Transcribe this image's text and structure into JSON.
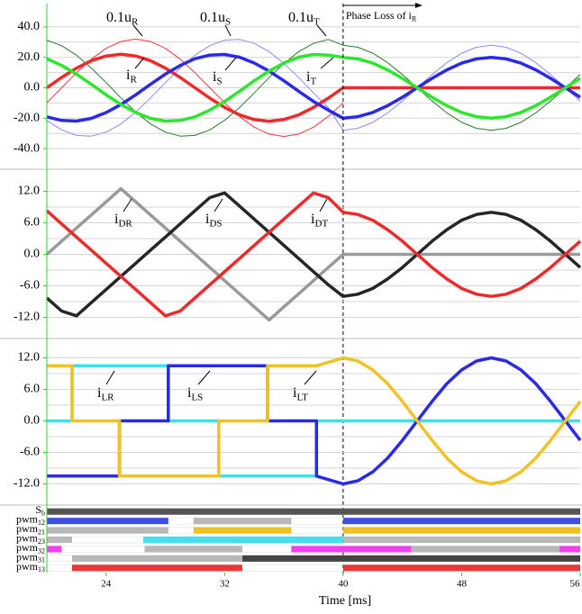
{
  "chart_data": [
    {
      "type": "line",
      "xlim": [
        20,
        56
      ],
      "ylim": [
        -50,
        50
      ],
      "grid": true,
      "yticks": [
        {
          "value": 40,
          "label": "40.0"
        },
        {
          "value": 20,
          "label": "20.0"
        },
        {
          "value": 0,
          "label": "0.0"
        },
        {
          "value": -20,
          "label": "-20.0"
        },
        {
          "value": -40,
          "label": "-40.0"
        }
      ],
      "ygrid": [
        -40,
        -30,
        -20,
        -10,
        0,
        10,
        20,
        30,
        40
      ],
      "annotation": {
        "text": "Phase Loss of i",
        "sub": "R",
        "x": 40
      },
      "x": [
        20,
        21,
        22,
        23,
        24,
        25,
        26,
        27,
        28,
        29,
        30,
        31,
        32,
        33,
        34,
        35,
        36,
        37,
        38,
        39,
        40,
        41,
        42,
        43,
        44,
        45,
        46,
        47,
        48,
        49,
        50,
        51,
        52,
        53,
        54,
        55,
        56
      ],
      "series": [
        {
          "name": "0.1u",
          "name_sub": "R",
          "color": "#e83a3a",
          "values": [
            -9.9,
            0,
            9.9,
            18.8,
            25.9,
            30.4,
            32,
            30.4,
            25.9,
            18.8,
            9.9,
            0,
            -9.9,
            -18.8,
            -25.9,
            -30.4,
            -32,
            -30.4,
            -25.9,
            -18.8,
            -9.9,
            null,
            null,
            null,
            null,
            null,
            null,
            null,
            null,
            null,
            null,
            null,
            null,
            null,
            null,
            null,
            null
          ]
        },
        {
          "name": "0.1u",
          "name_sub": "S",
          "color": "#8c8cf4",
          "values": [
            -21.4,
            -27.7,
            -31.3,
            -31.8,
            -29.2,
            -23.8,
            -16,
            -6.7,
            3.4,
            13,
            21.4,
            27.7,
            31.3,
            31.8,
            29.2,
            23.8,
            16,
            6.7,
            -3.4,
            -13,
            -28,
            -26.6,
            -22.7,
            -16.5,
            -8.7,
            0,
            8.7,
            16.5,
            22.7,
            26.6,
            28,
            26.6,
            22.7,
            16.5,
            8.7,
            0,
            -8.7
          ]
        },
        {
          "name": "0.1u",
          "name_sub": "T",
          "color": "#2a7a2a",
          "values": [
            31.3,
            27.7,
            21.4,
            13,
            3.4,
            -6.7,
            -16,
            -23.8,
            -29.2,
            -31.8,
            -31.3,
            -27.7,
            -21.4,
            -13,
            -3.4,
            6.7,
            16,
            23.8,
            29.2,
            31.8,
            28,
            26.6,
            22.7,
            16.5,
            8.7,
            0,
            -8.7,
            -16.5,
            -22.7,
            -26.6,
            -28,
            -26.6,
            -22.7,
            -16.5,
            -8.7,
            0,
            8.7
          ]
        },
        {
          "name": "i",
          "name_sub": "R",
          "color": "#ee2a2a",
          "values": [
            0,
            6.8,
            12.9,
            17.8,
            20.9,
            22,
            20.9,
            17.8,
            12.9,
            6.8,
            0,
            -6.8,
            -12.9,
            -17.8,
            -20.9,
            -22,
            -20.9,
            -17.8,
            -12.9,
            -6.8,
            0,
            0,
            0,
            0,
            0,
            0,
            0,
            0,
            0,
            0,
            0,
            0,
            0,
            0,
            0,
            0,
            0
          ]
        },
        {
          "name": "i",
          "name_sub": "S",
          "color": "#2a2ae6",
          "values": [
            -19.1,
            -21.5,
            -21.9,
            -20.1,
            -16.3,
            -11,
            -4.6,
            2.3,
            9,
            14.7,
            19.1,
            21.5,
            21.9,
            20.1,
            16.3,
            11,
            4.6,
            -2.3,
            -9,
            -14.7,
            -20,
            -19,
            -16.2,
            -11.8,
            -6.2,
            0,
            6.2,
            11.8,
            16.2,
            19,
            20,
            19,
            16.2,
            11.8,
            6.2,
            0,
            -6.2
          ]
        },
        {
          "name": "i",
          "name_sub": "T",
          "color": "#2ee62e",
          "values": [
            19.1,
            14.7,
            9,
            2.3,
            -4.6,
            -11,
            -16.3,
            -20.1,
            -21.9,
            -21.5,
            -19.1,
            -14.7,
            -9,
            -2.3,
            4.6,
            11,
            16.3,
            20.1,
            21.9,
            21.5,
            20,
            19,
            16.2,
            11.8,
            6.2,
            0,
            -6.2,
            -11.8,
            -16.2,
            -19,
            -20,
            -19,
            -16.2,
            -11.8,
            -6.2,
            0,
            6.2
          ]
        }
      ]
    },
    {
      "type": "line",
      "xlim": [
        20,
        56
      ],
      "ylim": [
        -15,
        15
      ],
      "grid": true,
      "yticks": [
        {
          "value": 12,
          "label": "12.0"
        },
        {
          "value": 6,
          "label": "6.0"
        },
        {
          "value": 0,
          "label": "0.0"
        },
        {
          "value": -6,
          "label": "-6.0"
        },
        {
          "value": -12,
          "label": "-12.0"
        }
      ],
      "ygrid": [
        -12,
        -9,
        -6,
        -3,
        0,
        3,
        6,
        9,
        12
      ],
      "x": [
        20,
        21,
        22,
        23,
        24,
        25,
        26,
        27,
        28,
        29,
        30,
        31,
        32,
        33,
        34,
        35,
        36,
        37,
        38,
        39,
        40,
        41,
        42,
        43,
        44,
        45,
        46,
        47,
        48,
        49,
        50,
        51,
        52,
        53,
        54,
        55,
        56
      ],
      "series": [
        {
          "name": "i",
          "name_sub": "DR",
          "color": "#9a9a9a",
          "values": [
            0,
            2.5,
            5,
            7.5,
            10,
            12.5,
            10,
            7.5,
            5,
            2.5,
            0,
            -2.5,
            -5,
            -7.5,
            -10,
            -12.5,
            -10,
            -7.5,
            -5,
            -2.5,
            0,
            0,
            0,
            0,
            0,
            0,
            0,
            0,
            0,
            0,
            0,
            0,
            0,
            0,
            0,
            0,
            0
          ]
        },
        {
          "name": "i",
          "name_sub": "DS",
          "color": "#262626",
          "values": [
            -8.3,
            -10.8,
            -11.7,
            -9.2,
            -6.7,
            -4.2,
            -1.7,
            0.8,
            3.3,
            5.8,
            8.3,
            10.8,
            11.7,
            9.2,
            6.7,
            4.2,
            1.7,
            -0.8,
            -3.3,
            -5.8,
            -8,
            -7.6,
            -6.5,
            -4.7,
            -2.5,
            0,
            2.5,
            4.7,
            6.5,
            7.6,
            8,
            7.6,
            6.5,
            4.7,
            2.5,
            0,
            -2.5
          ]
        },
        {
          "name": "i",
          "name_sub": "DT",
          "color": "#ec2a2a",
          "values": [
            8.3,
            5.8,
            3.3,
            0.8,
            -1.7,
            -4.2,
            -6.7,
            -9.2,
            -11.7,
            -10.8,
            -8.3,
            -5.8,
            -3.3,
            -0.8,
            1.7,
            4.2,
            6.7,
            9.2,
            11.7,
            10.8,
            8,
            7.6,
            6.5,
            4.7,
            2.5,
            0,
            -2.5,
            -4.7,
            -6.5,
            -7.6,
            -8,
            -7.6,
            -6.5,
            -4.7,
            -2.5,
            0,
            2.5
          ]
        }
      ]
    },
    {
      "type": "line",
      "xlim": [
        20,
        56
      ],
      "ylim": [
        -15,
        15
      ],
      "grid": true,
      "yticks": [
        {
          "value": 12,
          "label": "12.0"
        },
        {
          "value": 6,
          "label": "6.0"
        },
        {
          "value": 0,
          "label": "0.0"
        },
        {
          "value": -6,
          "label": "-6.0"
        },
        {
          "value": -12,
          "label": "-12.0"
        }
      ],
      "ygrid": [
        -12,
        -9,
        -6,
        -3,
        0,
        3,
        6,
        9,
        12
      ],
      "x": [
        20,
        21.7,
        21.7,
        24.9,
        24.9,
        28.2,
        28.2,
        31.6,
        31.6,
        34.9,
        34.9,
        38.2,
        38.2,
        40,
        41,
        42,
        43,
        44,
        45,
        46,
        47,
        48,
        49,
        50,
        51,
        52,
        53,
        54,
        55,
        56
      ],
      "series": [
        {
          "name": "i",
          "name_sub": "LR",
          "color": "#3ee0f0",
          "values": [
            0,
            0,
            10.5,
            10.5,
            10.5,
            10.5,
            0,
            0,
            -10.5,
            -10.5,
            -10.5,
            -10.5,
            0,
            0,
            0,
            0,
            0,
            0,
            0,
            0,
            0,
            0,
            0,
            0,
            0,
            0,
            0,
            0,
            0,
            0
          ]
        },
        {
          "name": "i",
          "name_sub": "LS",
          "color": "#2a2ae6",
          "values": [
            -10.5,
            -10.5,
            -10.5,
            -10.5,
            0,
            0,
            10.5,
            10.5,
            10.5,
            10.5,
            0,
            0,
            -10.5,
            -12,
            -11.4,
            -9.7,
            -7.1,
            -3.7,
            0,
            3.7,
            7.1,
            9.7,
            11.4,
            12,
            11.4,
            9.7,
            7.1,
            3.7,
            0,
            -3.7
          ]
        },
        {
          "name": "i",
          "name_sub": "LT",
          "color": "#f2c224",
          "values": [
            10.5,
            10.5,
            0,
            0,
            -10.5,
            -10.5,
            -10.5,
            -10.5,
            0,
            0,
            10.5,
            10.5,
            10.5,
            12,
            11.4,
            9.7,
            7.1,
            3.7,
            0,
            -3.7,
            -7.1,
            -9.7,
            -11.4,
            -12,
            -11.4,
            -9.7,
            -7.1,
            -3.7,
            0,
            3.7
          ]
        }
      ]
    },
    {
      "type": "timing",
      "xlim": [
        20,
        56
      ],
      "xticks": [
        24,
        32,
        40,
        48,
        56
      ],
      "xlabel": "Time [ms]",
      "rows": [
        {
          "name": "S",
          "name_sub": "b",
          "segments": [
            {
              "start": 20,
              "end": 56,
              "color": "#555555"
            }
          ]
        },
        {
          "name": "pwm",
          "name_sub": "12",
          "segments": [
            {
              "start": 20,
              "end": 28.2,
              "color": "#3c50e8"
            },
            {
              "start": 29.9,
              "end": 36.5,
              "color": "#b8b8b8"
            },
            {
              "start": 40,
              "end": 56,
              "color": "#3c50e8"
            }
          ]
        },
        {
          "name": "pwm",
          "name_sub": "21",
          "segments": [
            {
              "start": 20,
              "end": 28.2,
              "color": "#b8b8b8"
            },
            {
              "start": 29.9,
              "end": 36.5,
              "color": "#f0c020"
            },
            {
              "start": 40,
              "end": 56,
              "color": "#f0c020"
            }
          ]
        },
        {
          "name": "pwm",
          "name_sub": "23",
          "segments": [
            {
              "start": 20,
              "end": 21.7,
              "color": "#b8b8b8"
            },
            {
              "start": 26.5,
              "end": 40,
              "color": "#40e0f0"
            },
            {
              "start": 40,
              "end": 56,
              "color": "#b8b8b8"
            }
          ]
        },
        {
          "name": "pwm",
          "name_sub": "32",
          "segments": [
            {
              "start": 20,
              "end": 21,
              "color": "#f040f0"
            },
            {
              "start": 26.6,
              "end": 33.2,
              "color": "#b8b8b8"
            },
            {
              "start": 36.5,
              "end": 44.6,
              "color": "#f040f0"
            },
            {
              "start": 44.6,
              "end": 54.6,
              "color": "#b8b8b8"
            },
            {
              "start": 54.6,
              "end": 56,
              "color": "#f040f0"
            }
          ]
        },
        {
          "name": "pwm",
          "name_sub": "31",
          "segments": [
            {
              "start": 21.7,
              "end": 33.2,
              "color": "#b8b8b8"
            },
            {
              "start": 33.2,
              "end": 56,
              "color": "#444444"
            }
          ]
        },
        {
          "name": "pwm",
          "name_sub": "13",
          "segments": [
            {
              "start": 21.7,
              "end": 33.2,
              "color": "#e83838"
            },
            {
              "start": 40,
              "end": 56,
              "color": "#e83838"
            }
          ]
        }
      ]
    }
  ]
}
